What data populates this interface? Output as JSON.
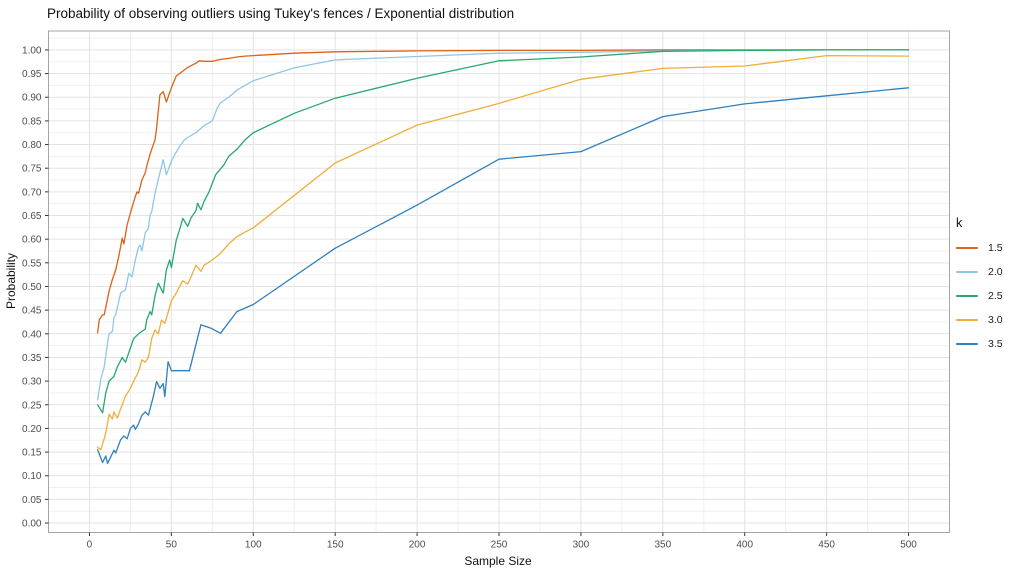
{
  "title": "Probability of observing outliers using Tukey's fences / Exponential distribution",
  "chart_data": {
    "type": "line",
    "title": "Probability of observing outliers using Tukey's fences / Exponential distribution",
    "xlabel": "Sample Size",
    "ylabel": "Probability",
    "xlim": [
      -25,
      525
    ],
    "ylim": [
      -0.02,
      1.04
    ],
    "grid": true,
    "panel_border_color": "#a6a6a6",
    "grid_major_color": "#e3e3e3",
    "grid_minor_color": "#f0f0f0",
    "tick_color": "#333333",
    "x_ticks": {
      "values": [
        0,
        50,
        100,
        150,
        200,
        250,
        300,
        350,
        400,
        450,
        500
      ],
      "labels": [
        "0",
        "50",
        "100",
        "150",
        "200",
        "250",
        "300",
        "350",
        "400",
        "450",
        "500"
      ]
    },
    "y_ticks": {
      "values": [
        0,
        0.05,
        0.1,
        0.15,
        0.2,
        0.25,
        0.3,
        0.35,
        0.4,
        0.45,
        0.5,
        0.55,
        0.6,
        0.65,
        0.7,
        0.75,
        0.8,
        0.85,
        0.9,
        0.95,
        1.0
      ],
      "labels": [
        "0.00",
        "0.05",
        "0.10",
        "0.15",
        "0.20",
        "0.25",
        "0.30",
        "0.35",
        "0.40",
        "0.45",
        "0.50",
        "0.55",
        "0.60",
        "0.65",
        "0.70",
        "0.75",
        "0.80",
        "0.85",
        "0.90",
        "0.95",
        "1.00"
      ]
    },
    "x_minor": [
      25,
      75,
      125,
      175,
      225,
      275,
      325,
      375,
      425,
      475
    ],
    "y_minor": [
      0.025,
      0.075,
      0.125,
      0.175,
      0.225,
      0.275,
      0.325,
      0.375,
      0.425,
      0.475,
      0.525,
      0.575,
      0.625,
      0.675,
      0.725,
      0.775,
      0.825,
      0.875,
      0.925,
      0.975,
      1.025
    ],
    "legend_title": "k",
    "legend_position": "right",
    "series": [
      {
        "name": "1.5",
        "color": "#de6118",
        "points": [
          [
            5,
            0.402
          ],
          [
            6,
            0.43
          ],
          [
            8,
            0.44
          ],
          [
            9,
            0.44
          ],
          [
            12,
            0.49
          ],
          [
            14,
            0.515
          ],
          [
            16,
            0.535
          ],
          [
            18,
            0.565
          ],
          [
            20,
            0.602
          ],
          [
            21,
            0.59
          ],
          [
            23,
            0.63
          ],
          [
            25,
            0.655
          ],
          [
            28,
            0.69
          ],
          [
            29,
            0.7
          ],
          [
            30,
            0.697
          ],
          [
            32,
            0.725
          ],
          [
            34,
            0.74
          ],
          [
            35,
            0.755
          ],
          [
            37,
            0.78
          ],
          [
            38,
            0.79
          ],
          [
            40,
            0.81
          ],
          [
            41,
            0.835
          ],
          [
            43,
            0.905
          ],
          [
            45,
            0.912
          ],
          [
            47,
            0.89
          ],
          [
            50,
            0.92
          ],
          [
            53,
            0.945
          ],
          [
            55,
            0.95
          ],
          [
            60,
            0.963
          ],
          [
            65,
            0.972
          ],
          [
            67,
            0.977
          ],
          [
            70,
            0.976
          ],
          [
            75,
            0.976
          ],
          [
            80,
            0.98
          ],
          [
            85,
            0.982
          ],
          [
            90,
            0.985
          ],
          [
            95,
            0.987
          ],
          [
            100,
            0.988
          ],
          [
            125,
            0.993
          ],
          [
            150,
            0.996
          ],
          [
            200,
            0.998
          ],
          [
            250,
            0.999
          ],
          [
            300,
            0.999
          ],
          [
            350,
            1.0
          ],
          [
            400,
            1.0
          ],
          [
            450,
            1.0
          ],
          [
            500,
            1.0
          ]
        ]
      },
      {
        "name": "2.0",
        "color": "#8fc7e8",
        "points": [
          [
            5,
            0.26
          ],
          [
            7,
            0.305
          ],
          [
            9,
            0.33
          ],
          [
            11,
            0.38
          ],
          [
            12,
            0.4
          ],
          [
            14,
            0.405
          ],
          [
            15,
            0.435
          ],
          [
            16,
            0.44
          ],
          [
            19,
            0.486
          ],
          [
            22,
            0.493
          ],
          [
            24,
            0.528
          ],
          [
            26,
            0.52
          ],
          [
            28,
            0.556
          ],
          [
            30,
            0.584
          ],
          [
            31,
            0.587
          ],
          [
            32,
            0.575
          ],
          [
            34,
            0.613
          ],
          [
            36,
            0.623
          ],
          [
            37,
            0.651
          ],
          [
            38,
            0.658
          ],
          [
            40,
            0.697
          ],
          [
            43,
            0.74
          ],
          [
            45,
            0.768
          ],
          [
            47,
            0.736
          ],
          [
            50,
            0.765
          ],
          [
            52,
            0.778
          ],
          [
            55,
            0.796
          ],
          [
            58,
            0.81
          ],
          [
            60,
            0.815
          ],
          [
            65,
            0.825
          ],
          [
            70,
            0.84
          ],
          [
            75,
            0.85
          ],
          [
            78,
            0.877
          ],
          [
            80,
            0.888
          ],
          [
            85,
            0.9
          ],
          [
            90,
            0.915
          ],
          [
            95,
            0.925
          ],
          [
            100,
            0.935
          ],
          [
            125,
            0.962
          ],
          [
            150,
            0.979
          ],
          [
            200,
            0.986
          ],
          [
            250,
            0.993
          ],
          [
            300,
            0.995
          ],
          [
            350,
            0.998
          ],
          [
            400,
            0.999
          ],
          [
            450,
            1.0
          ],
          [
            500,
            1.0
          ]
        ]
      },
      {
        "name": "2.5",
        "color": "#27a86e",
        "points": [
          [
            5,
            0.25
          ],
          [
            8,
            0.233
          ],
          [
            10,
            0.275
          ],
          [
            12,
            0.3
          ],
          [
            15,
            0.31
          ],
          [
            17,
            0.33
          ],
          [
            20,
            0.35
          ],
          [
            22,
            0.34
          ],
          [
            25,
            0.37
          ],
          [
            27,
            0.39
          ],
          [
            30,
            0.4
          ],
          [
            32,
            0.405
          ],
          [
            34,
            0.41
          ],
          [
            35,
            0.43
          ],
          [
            37,
            0.447
          ],
          [
            38,
            0.44
          ],
          [
            40,
            0.48
          ],
          [
            42,
            0.507
          ],
          [
            45,
            0.486
          ],
          [
            47,
            0.535
          ],
          [
            49,
            0.556
          ],
          [
            50,
            0.54
          ],
          [
            53,
            0.598
          ],
          [
            55,
            0.62
          ],
          [
            57,
            0.644
          ],
          [
            60,
            0.627
          ],
          [
            62,
            0.645
          ],
          [
            65,
            0.66
          ],
          [
            66,
            0.676
          ],
          [
            68,
            0.662
          ],
          [
            70,
            0.68
          ],
          [
            73,
            0.7
          ],
          [
            77,
            0.736
          ],
          [
            82,
            0.757
          ],
          [
            85,
            0.775
          ],
          [
            90,
            0.79
          ],
          [
            95,
            0.81
          ],
          [
            100,
            0.825
          ],
          [
            125,
            0.866
          ],
          [
            150,
            0.898
          ],
          [
            200,
            0.94
          ],
          [
            250,
            0.977
          ],
          [
            300,
            0.985
          ],
          [
            350,
            0.997
          ],
          [
            400,
            0.999
          ],
          [
            450,
            1.0
          ],
          [
            500,
            1.0
          ]
        ]
      },
      {
        "name": "3.0",
        "color": "#efae3a",
        "points": [
          [
            5,
            0.16
          ],
          [
            7,
            0.155
          ],
          [
            10,
            0.19
          ],
          [
            12,
            0.23
          ],
          [
            14,
            0.22
          ],
          [
            15,
            0.235
          ],
          [
            17,
            0.222
          ],
          [
            20,
            0.25
          ],
          [
            22,
            0.268
          ],
          [
            25,
            0.285
          ],
          [
            27,
            0.3
          ],
          [
            30,
            0.32
          ],
          [
            32,
            0.345
          ],
          [
            34,
            0.34
          ],
          [
            36,
            0.35
          ],
          [
            38,
            0.39
          ],
          [
            40,
            0.408
          ],
          [
            42,
            0.4
          ],
          [
            44,
            0.429
          ],
          [
            46,
            0.422
          ],
          [
            48,
            0.445
          ],
          [
            50,
            0.47
          ],
          [
            52,
            0.48
          ],
          [
            55,
            0.5
          ],
          [
            57,
            0.512
          ],
          [
            60,
            0.505
          ],
          [
            62,
            0.52
          ],
          [
            65,
            0.545
          ],
          [
            68,
            0.532
          ],
          [
            70,
            0.545
          ],
          [
            75,
            0.556
          ],
          [
            80,
            0.57
          ],
          [
            85,
            0.59
          ],
          [
            90,
            0.605
          ],
          [
            95,
            0.615
          ],
          [
            100,
            0.624
          ],
          [
            150,
            0.761
          ],
          [
            200,
            0.841
          ],
          [
            250,
            0.887
          ],
          [
            300,
            0.938
          ],
          [
            350,
            0.961
          ],
          [
            400,
            0.966
          ],
          [
            450,
            0.988
          ],
          [
            500,
            0.987
          ]
        ]
      },
      {
        "name": "3.5",
        "color": "#2f80be",
        "points": [
          [
            5,
            0.155
          ],
          [
            8,
            0.128
          ],
          [
            10,
            0.142
          ],
          [
            11,
            0.126
          ],
          [
            13,
            0.14
          ],
          [
            15,
            0.154
          ],
          [
            16,
            0.148
          ],
          [
            19,
            0.176
          ],
          [
            21,
            0.184
          ],
          [
            23,
            0.178
          ],
          [
            25,
            0.2
          ],
          [
            27,
            0.207
          ],
          [
            28,
            0.198
          ],
          [
            30,
            0.21
          ],
          [
            32,
            0.228
          ],
          [
            34,
            0.235
          ],
          [
            36,
            0.228
          ],
          [
            39,
            0.267
          ],
          [
            41,
            0.299
          ],
          [
            43,
            0.285
          ],
          [
            45,
            0.295
          ],
          [
            46,
            0.267
          ],
          [
            48,
            0.341
          ],
          [
            50,
            0.322
          ],
          [
            61,
            0.322
          ],
          [
            68,
            0.419
          ],
          [
            74,
            0.412
          ],
          [
            80,
            0.401
          ],
          [
            90,
            0.447
          ],
          [
            100,
            0.462
          ],
          [
            150,
            0.581
          ],
          [
            200,
            0.672
          ],
          [
            250,
            0.769
          ],
          [
            300,
            0.785
          ],
          [
            350,
            0.859
          ],
          [
            400,
            0.886
          ],
          [
            450,
            0.903
          ],
          [
            500,
            0.92
          ]
        ]
      }
    ]
  }
}
